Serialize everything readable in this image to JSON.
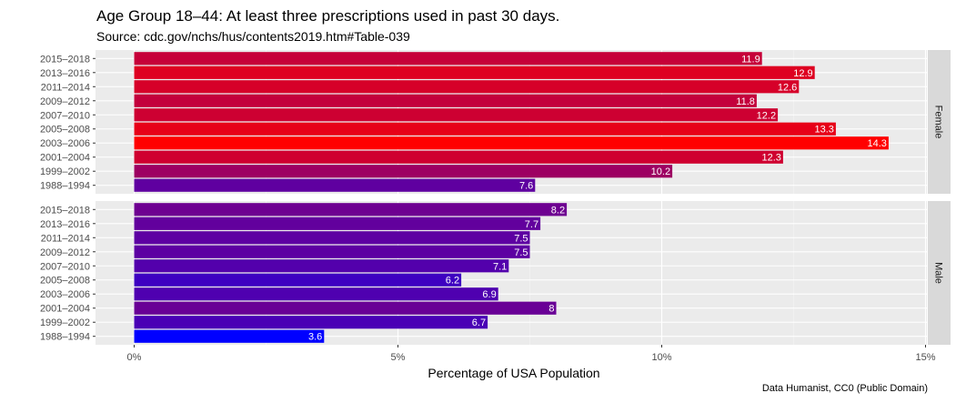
{
  "chart_data": {
    "type": "bar",
    "orientation": "horizontal",
    "title": "Age Group 18–44: At least three prescriptions used in past 30 days.",
    "subtitle": "Source: cdc.gov/nchs/hus/contents2019.htm#Table-039",
    "caption": "Data Humanist, CC0 (Public Domain)",
    "xlabel": "Percentage of USA Population",
    "ylabel": "",
    "xlim": [
      0,
      15
    ],
    "x_ticks": [
      0,
      5,
      10,
      15
    ],
    "x_tick_labels": [
      "0%",
      "5%",
      "10%",
      "15%"
    ],
    "categories": [
      "2015–2018",
      "2013–2016",
      "2011–2014",
      "2009–2012",
      "2007–2010",
      "2005–2008",
      "2003–2006",
      "2001–2004",
      "1999–2002",
      "1988–1994"
    ],
    "facets": [
      {
        "name": "Female",
        "values": [
          11.9,
          12.9,
          12.6,
          11.8,
          12.2,
          13.3,
          14.3,
          12.3,
          10.2,
          7.6
        ]
      },
      {
        "name": "Male",
        "values": [
          8.2,
          7.7,
          7.5,
          7.5,
          7.1,
          6.2,
          6.9,
          8,
          6.7,
          3.6
        ]
      }
    ],
    "value_labels": true,
    "color_scale": {
      "low": "#0000ff",
      "high": "#ff0000",
      "domain": [
        3.6,
        14.3
      ]
    },
    "panel_background": "#ebebeb",
    "grid": true,
    "legend": "none"
  }
}
